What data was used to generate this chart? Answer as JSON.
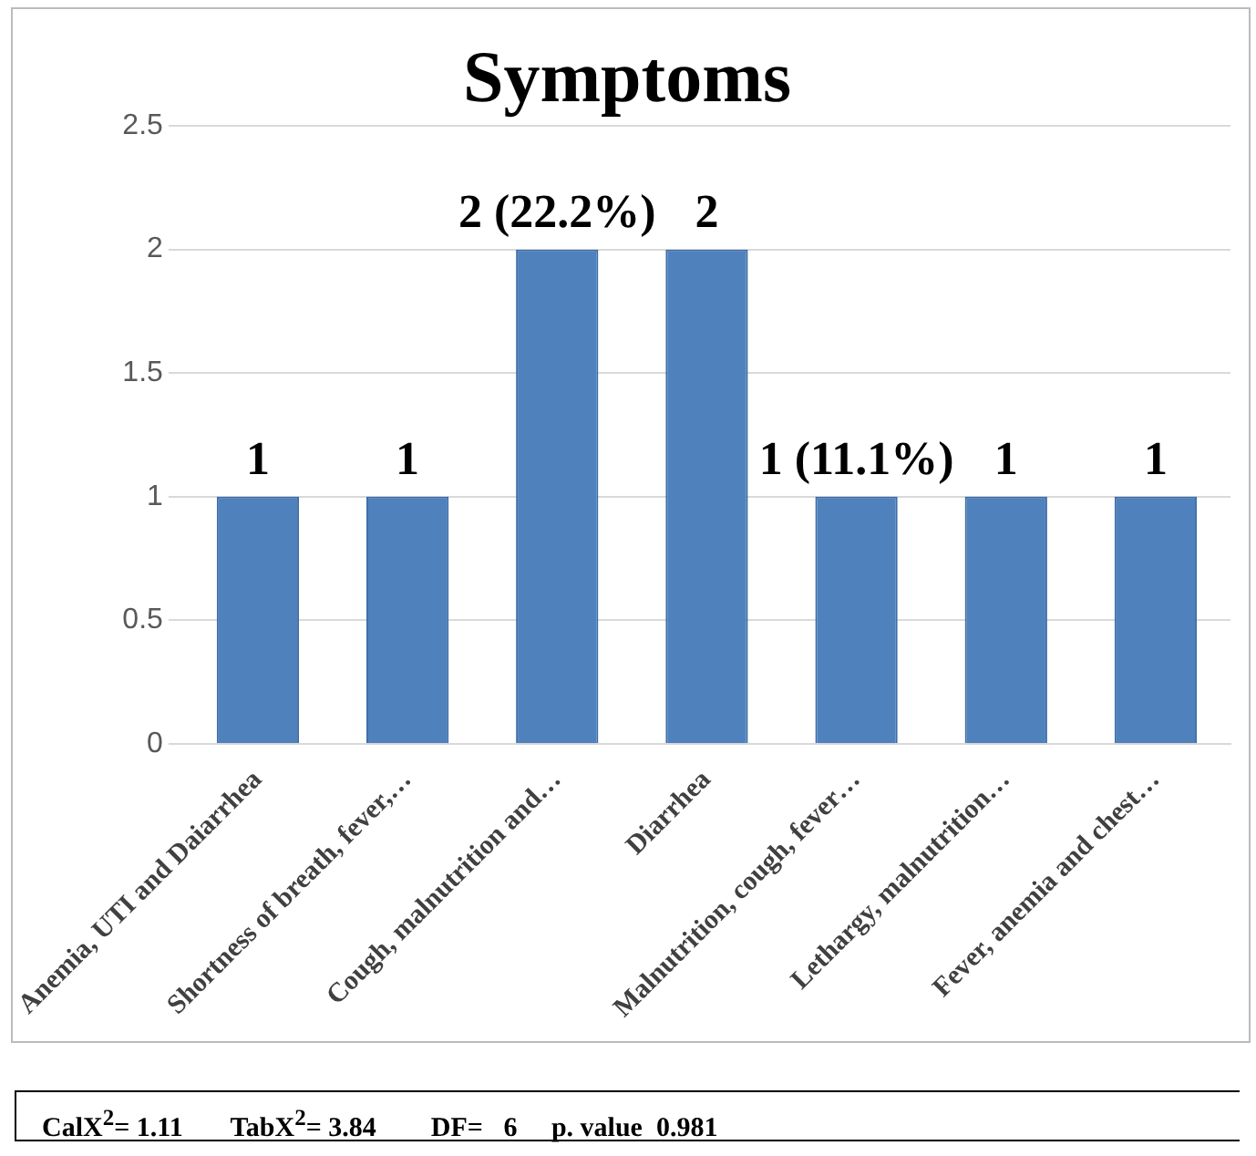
{
  "chart_data": {
    "type": "bar",
    "title": "Symptoms",
    "categories": [
      "Anemia, UTI and Daiarrhea",
      "Shortness of breath, fever,…",
      "Cough, malnutrition and…",
      "Diarrhea",
      "Malnutrition, cough, fever…",
      "Lethargy, malnutrition…",
      "Fever, anemia and chest…"
    ],
    "values": [
      1,
      1,
      2,
      2,
      1,
      1,
      1
    ],
    "value_labels": [
      "1",
      "1",
      "2 (22.2%)",
      "2",
      "1 (11.1%)",
      "1",
      "1"
    ],
    "color": "#4f81bd",
    "ylim": [
      0,
      2.5
    ],
    "yticks": [
      0,
      0.5,
      1,
      1.5,
      2,
      2.5
    ],
    "grid": "y",
    "legend": false,
    "annotations": [
      "CalX$^{2}$= 1.11       TabX$^{2}$= 3.84        DF=   6     p. value  0.981"
    ]
  }
}
